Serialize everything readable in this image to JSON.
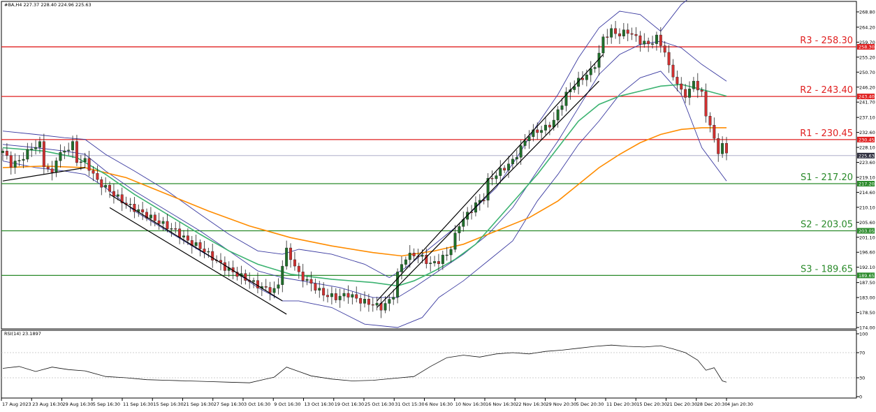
{
  "header": {
    "symbol_info": "#BA,H4  227.37 228.40 224.96 225.63",
    "rsi_label": "RSI(14) 23.1897"
  },
  "colors": {
    "up_candle": "#1f6f2a",
    "down_candle": "#d03030",
    "resistance": "#e02020",
    "support": "#2a8a2a",
    "ma_orange": "#ff8c00",
    "ma_green": "#3cb371",
    "bollinger": "#3a3aa0",
    "rsi_line": "#111111",
    "current_price": "#a0a0c0"
  },
  "chart_data": [
    {
      "type": "candlestick",
      "title": "",
      "xlabel": "",
      "ylabel": "",
      "ylim": [
        174.0,
        268.8
      ],
      "y_ticks": [
        "268.80",
        "264.20",
        "259.70",
        "255.20",
        "250.70",
        "246.20",
        "241.70",
        "237.10",
        "232.60",
        "228.10",
        "223.60",
        "219.10",
        "214.60",
        "210.10",
        "205.60",
        "201.10",
        "196.60",
        "192.10",
        "187.50",
        "183.00",
        "178.50",
        "174.00"
      ],
      "x_ticks": [
        "17 Aug 2023",
        "23 Aug 16:30",
        "29 Aug 16:30",
        "5 Sep 16:30",
        "11 Sep 16:30",
        "15 Sep 16:30",
        "21 Sep 16:30",
        "27 Sep 16:30",
        "3 Oct 16:30",
        "9 Oct 16:30",
        "13 Oct 16:30",
        "19 Oct 16:30",
        "25 Oct 16:30",
        "31 Oct 15:30",
        "6 Nov 16:30",
        "10 Nov 16:30",
        "16 Nov 16:30",
        "22 Nov 16:30",
        "29 Nov 20:30",
        "5 Dec 20:30",
        "11 Dec 20:30",
        "15 Dec 20:30",
        "21 Dec 20:30",
        "28 Dec 20:30",
        "4 Jan 20:30"
      ],
      "levels": [
        {
          "label": "R3 - 258.30",
          "tag": "258.30",
          "value": 258.3,
          "kind": "resistance"
        },
        {
          "label": "R2 - 243.40",
          "tag": "243.40",
          "value": 243.4,
          "kind": "resistance"
        },
        {
          "label": "R1 - 230.45",
          "tag": "230.45",
          "value": 230.45,
          "kind": "resistance"
        },
        {
          "label": "S1 - 217.20",
          "tag": "217.20",
          "value": 217.2,
          "kind": "support"
        },
        {
          "label": "S2 - 203.05",
          "tag": "203.05",
          "value": 203.05,
          "kind": "support"
        },
        {
          "label": "S3 - 189.65",
          "tag": "189.65",
          "value": 189.65,
          "kind": "support"
        }
      ],
      "current_price": {
        "value": 225.63,
        "tag": "225.63"
      },
      "close_path": [
        [
          0,
          227
        ],
        [
          2,
          223
        ],
        [
          4,
          224
        ],
        [
          7,
          228
        ],
        [
          9,
          229
        ],
        [
          10,
          223
        ],
        [
          12,
          220
        ],
        [
          13,
          225
        ],
        [
          15,
          227
        ],
        [
          17,
          229
        ],
        [
          18,
          224
        ],
        [
          20,
          224
        ],
        [
          21,
          222
        ],
        [
          23,
          218
        ],
        [
          25,
          216
        ],
        [
          27,
          214
        ],
        [
          30,
          211
        ],
        [
          33,
          209
        ],
        [
          36,
          207
        ],
        [
          39,
          205
        ],
        [
          42,
          203
        ],
        [
          45,
          200
        ],
        [
          48,
          198
        ],
        [
          51,
          195
        ],
        [
          54,
          192
        ],
        [
          57,
          190
        ],
        [
          60,
          188
        ],
        [
          63,
          186
        ],
        [
          66,
          185
        ],
        [
          67,
          187
        ],
        [
          68,
          193
        ],
        [
          69,
          197
        ],
        [
          70,
          195
        ],
        [
          72,
          190
        ],
        [
          75,
          187
        ],
        [
          78,
          184
        ],
        [
          81,
          183
        ],
        [
          84,
          184
        ],
        [
          87,
          182
        ],
        [
          90,
          181
        ],
        [
          92,
          180
        ],
        [
          94,
          182
        ],
        [
          95,
          184
        ],
        [
          96,
          190
        ],
        [
          97,
          193
        ],
        [
          98,
          195
        ],
        [
          100,
          196
        ],
        [
          102,
          195
        ],
        [
          104,
          193
        ],
        [
          106,
          194
        ],
        [
          108,
          196
        ],
        [
          109,
          198
        ],
        [
          111,
          205
        ],
        [
          113,
          208
        ],
        [
          115,
          211
        ],
        [
          117,
          213
        ],
        [
          118,
          218
        ],
        [
          120,
          220
        ],
        [
          122,
          222
        ],
        [
          124,
          224
        ],
        [
          126,
          228
        ],
        [
          128,
          232
        ],
        [
          130,
          233
        ],
        [
          132,
          234
        ],
        [
          134,
          236
        ],
        [
          135,
          239
        ],
        [
          137,
          244
        ],
        [
          139,
          247
        ],
        [
          141,
          249
        ],
        [
          143,
          251
        ],
        [
          144,
          253
        ],
        [
          145,
          256
        ],
        [
          146,
          261
        ],
        [
          148,
          263
        ],
        [
          150,
          262
        ],
        [
          152,
          263
        ],
        [
          153,
          262
        ],
        [
          155,
          260
        ],
        [
          157,
          259
        ],
        [
          159,
          261
        ],
        [
          160,
          259
        ],
        [
          161,
          257
        ],
        [
          162,
          252
        ],
        [
          163,
          250
        ],
        [
          164,
          247
        ],
        [
          165,
          245
        ],
        [
          166,
          244
        ],
        [
          167,
          245
        ],
        [
          168,
          248
        ],
        [
          170,
          244
        ],
        [
          171,
          238
        ],
        [
          172,
          235
        ],
        [
          173,
          230
        ],
        [
          174,
          227
        ],
        [
          175,
          229
        ],
        [
          176,
          226
        ]
      ],
      "indicators": {
        "ma_orange": [
          [
            0,
            222
          ],
          [
            10,
            222.5
          ],
          [
            20,
            222
          ],
          [
            30,
            219
          ],
          [
            40,
            214
          ],
          [
            50,
            209
          ],
          [
            60,
            204.5
          ],
          [
            70,
            201
          ],
          [
            80,
            198.5
          ],
          [
            90,
            196.5
          ],
          [
            97,
            195.5
          ],
          [
            105,
            197
          ],
          [
            112,
            199
          ],
          [
            120,
            203
          ],
          [
            128,
            207
          ],
          [
            135,
            212
          ],
          [
            140,
            217
          ],
          [
            145,
            222
          ],
          [
            150,
            226
          ],
          [
            155,
            229.5
          ],
          [
            160,
            232
          ],
          [
            165,
            233.5
          ],
          [
            170,
            234
          ],
          [
            176,
            234
          ]
        ],
        "ma_green": [
          [
            0,
            228
          ],
          [
            10,
            227
          ],
          [
            18,
            225
          ],
          [
            25,
            220
          ],
          [
            32,
            214
          ],
          [
            40,
            208
          ],
          [
            48,
            202
          ],
          [
            55,
            197
          ],
          [
            62,
            193
          ],
          [
            70,
            190
          ],
          [
            80,
            188.5
          ],
          [
            90,
            187.5
          ],
          [
            96,
            186.5
          ],
          [
            100,
            188
          ],
          [
            105,
            191
          ],
          [
            110,
            194.5
          ],
          [
            115,
            199
          ],
          [
            120,
            206
          ],
          [
            125,
            213
          ],
          [
            130,
            220
          ],
          [
            135,
            228
          ],
          [
            140,
            236
          ],
          [
            145,
            241
          ],
          [
            150,
            243.5
          ],
          [
            155,
            245
          ],
          [
            160,
            246.5
          ],
          [
            165,
            247
          ],
          [
            170,
            245.5
          ],
          [
            176,
            243.5
          ]
        ],
        "bb_upper": [
          [
            0,
            233
          ],
          [
            8,
            232
          ],
          [
            15,
            231
          ],
          [
            20,
            230.5
          ],
          [
            25,
            226
          ],
          [
            32,
            221
          ],
          [
            40,
            215
          ],
          [
            48,
            208
          ],
          [
            55,
            202
          ],
          [
            62,
            197
          ],
          [
            68,
            196
          ],
          [
            72,
            197.5
          ],
          [
            80,
            196
          ],
          [
            88,
            193
          ],
          [
            94,
            189
          ],
          [
            98,
            192
          ],
          [
            104,
            198
          ],
          [
            110,
            204
          ],
          [
            115,
            210
          ],
          [
            120,
            216
          ],
          [
            125,
            225
          ],
          [
            130,
            235
          ],
          [
            135,
            244
          ],
          [
            140,
            255
          ],
          [
            145,
            264
          ],
          [
            150,
            269
          ],
          [
            155,
            268
          ],
          [
            160,
            263
          ],
          [
            165,
            271
          ],
          [
            170,
            276
          ],
          [
            176,
            280
          ]
        ],
        "bb_middle": [
          [
            0,
            229
          ],
          [
            8,
            228
          ],
          [
            15,
            227
          ],
          [
            20,
            226
          ],
          [
            25,
            221
          ],
          [
            32,
            215
          ],
          [
            40,
            209
          ],
          [
            48,
            203
          ],
          [
            55,
            197
          ],
          [
            62,
            191
          ],
          [
            68,
            189
          ],
          [
            75,
            187.5
          ],
          [
            82,
            186
          ],
          [
            90,
            183
          ],
          [
            96,
            183
          ],
          [
            100,
            186
          ],
          [
            106,
            191
          ],
          [
            112,
            196
          ],
          [
            118,
            202
          ],
          [
            124,
            210
          ],
          [
            130,
            221
          ],
          [
            135,
            230
          ],
          [
            140,
            240
          ],
          [
            145,
            250
          ],
          [
            150,
            256
          ],
          [
            155,
            259
          ],
          [
            160,
            260
          ],
          [
            165,
            258
          ],
          [
            170,
            253
          ],
          [
            176,
            248
          ]
        ],
        "bb_lower": [
          [
            0,
            224
          ],
          [
            8,
            222
          ],
          [
            15,
            221
          ],
          [
            20,
            220
          ],
          [
            25,
            216
          ],
          [
            32,
            209
          ],
          [
            40,
            203
          ],
          [
            48,
            197
          ],
          [
            55,
            192
          ],
          [
            62,
            186
          ],
          [
            68,
            182
          ],
          [
            72,
            182
          ],
          [
            80,
            180
          ],
          [
            88,
            175
          ],
          [
            96,
            174
          ],
          [
            102,
            177
          ],
          [
            106,
            183
          ],
          [
            112,
            188
          ],
          [
            118,
            194
          ],
          [
            124,
            200
          ],
          [
            130,
            212
          ],
          [
            135,
            220
          ],
          [
            140,
            229
          ],
          [
            145,
            236
          ],
          [
            150,
            244
          ],
          [
            155,
            249
          ],
          [
            160,
            251
          ],
          [
            165,
            244
          ],
          [
            170,
            228
          ],
          [
            176,
            218
          ]
        ]
      }
    },
    {
      "type": "line",
      "title": "",
      "xlabel": "",
      "ylabel": "",
      "ylim": [
        0,
        100
      ],
      "y_ticks": [
        "100",
        "70",
        "30",
        "0"
      ],
      "series": [
        {
          "values": [
            [
              0,
              45
            ],
            [
              4,
              48
            ],
            [
              8,
              40
            ],
            [
              12,
              47
            ],
            [
              16,
              43
            ],
            [
              20,
              41
            ],
            [
              25,
              32
            ],
            [
              30,
              30
            ],
            [
              35,
              27
            ],
            [
              40,
              26
            ],
            [
              45,
              25
            ],
            [
              50,
              24
            ],
            [
              55,
              23
            ],
            [
              60,
              22
            ],
            [
              66,
              31
            ],
            [
              69,
              47
            ],
            [
              72,
              40
            ],
            [
              75,
              33
            ],
            [
              80,
              28
            ],
            [
              85,
              25
            ],
            [
              90,
              26
            ],
            [
              95,
              29
            ],
            [
              100,
              32
            ],
            [
              104,
              48
            ],
            [
              108,
              62
            ],
            [
              112,
              66
            ],
            [
              116,
              63
            ],
            [
              120,
              68
            ],
            [
              124,
              70
            ],
            [
              128,
              68
            ],
            [
              132,
              72
            ],
            [
              136,
              74
            ],
            [
              140,
              77
            ],
            [
              144,
              80
            ],
            [
              148,
              82
            ],
            [
              152,
              80
            ],
            [
              156,
              79
            ],
            [
              160,
              81
            ],
            [
              163,
              76
            ],
            [
              166,
              70
            ],
            [
              169,
              58
            ],
            [
              171,
              42
            ],
            [
              173,
              46
            ],
            [
              175,
              25
            ],
            [
              176,
              23
            ]
          ]
        }
      ]
    }
  ]
}
